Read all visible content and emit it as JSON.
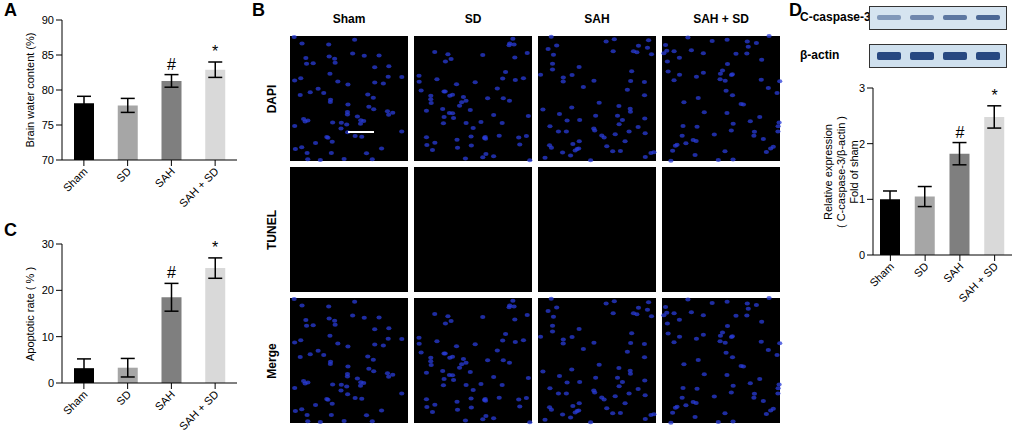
{
  "chart_data": [
    {
      "panel": "A",
      "type": "bar",
      "y_label": "Brain water content (%)",
      "categories": [
        "Sham",
        "SD",
        "SAH",
        "SAH + SD"
      ],
      "values": [
        78.1,
        77.8,
        81.3,
        82.9
      ],
      "errors": [
        1.0,
        1.0,
        0.9,
        1.1
      ],
      "colors": [
        "#000000",
        "#a6a6a6",
        "#7f7f7f",
        "#d9d9d9"
      ],
      "ylim": [
        70,
        90
      ],
      "yticks": [
        70,
        75,
        80,
        85,
        90
      ],
      "annotations": [
        {
          "category": "SAH",
          "text": "#"
        },
        {
          "category": "SAH + SD",
          "text": "*"
        }
      ]
    },
    {
      "panel": "C",
      "type": "bar",
      "y_label": "Apoptotic rate ( % )",
      "categories": [
        "Sham",
        "SD",
        "SAH",
        "SAH + SD"
      ],
      "values": [
        3.2,
        3.3,
        18.5,
        24.8
      ],
      "errors": [
        2.0,
        2.0,
        3.0,
        2.2
      ],
      "colors": [
        "#000000",
        "#a6a6a6",
        "#7f7f7f",
        "#d9d9d9"
      ],
      "ylim": [
        0,
        30
      ],
      "yticks": [
        0,
        10,
        20,
        30
      ],
      "annotations": [
        {
          "category": "SAH",
          "text": "#"
        },
        {
          "category": "SAH + SD",
          "text": "*"
        }
      ]
    },
    {
      "panel": "D",
      "type": "bar",
      "y_label": "Relative expression\n( C-caspase-3/β-actin )\nFold of sham",
      "blot_labels": [
        "C-caspase-3",
        "β-actin"
      ],
      "categories": [
        "Sham",
        "SD",
        "SAH",
        "SAH + SD"
      ],
      "values": [
        1.0,
        1.05,
        1.82,
        2.48
      ],
      "errors": [
        0.15,
        0.18,
        0.2,
        0.2
      ],
      "colors": [
        "#000000",
        "#a6a6a6",
        "#7f7f7f",
        "#d9d9d9"
      ],
      "ylim": [
        0,
        3
      ],
      "yticks": [
        0,
        1,
        2,
        3
      ],
      "annotations": [
        {
          "category": "SAH",
          "text": "#"
        },
        {
          "category": "SAH + SD",
          "text": "*"
        }
      ]
    }
  ],
  "image_panel": {
    "panel": "B",
    "columns": [
      "Sham",
      "SD",
      "SAH",
      "SAH + SD"
    ],
    "rows": [
      "DAPI",
      "TUNEL",
      "Merge"
    ]
  }
}
